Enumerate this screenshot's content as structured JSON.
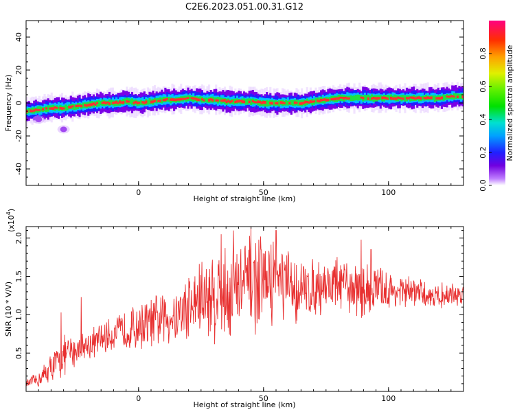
{
  "chart_data": [
    {
      "type": "heatmap",
      "title": "C2E6.2023.051.00.31.G12",
      "xlabel": "Height of straight line (km)",
      "ylabel": "Frequency (Hz)",
      "xlim": [
        -45,
        130
      ],
      "ylim": [
        -50,
        50
      ],
      "x_ticks": [
        "0",
        "50",
        "100"
      ],
      "x_tick_values": [
        0,
        50,
        100
      ],
      "y_ticks": [
        "40",
        "20",
        "0",
        "-20",
        "-40"
      ],
      "y_tick_values": [
        40,
        20,
        0,
        -20,
        -40
      ],
      "colorbar": {
        "label": "Normalized spectral amplitude",
        "ticks": [
          "0.0",
          "0.2",
          "0.4",
          "0.6",
          "0.8"
        ],
        "tick_values": [
          0.0,
          0.2,
          0.4,
          0.6,
          0.8
        ],
        "range": [
          0,
          1
        ]
      },
      "ridge": {
        "x": [
          -45,
          -40,
          -35,
          -30,
          -25,
          -20,
          -15,
          -10,
          -5,
          0,
          5,
          10,
          15,
          20,
          25,
          30,
          35,
          40,
          45,
          50,
          55,
          60,
          65,
          70,
          75,
          80,
          85,
          90,
          95,
          100,
          105,
          110,
          115,
          120,
          125,
          130
        ],
        "frequency": [
          -5,
          -4,
          -3,
          -3,
          -2,
          -1,
          0,
          0,
          1,
          0,
          1,
          2,
          2,
          3,
          2,
          2,
          1,
          1,
          1,
          0,
          0,
          0,
          0,
          1,
          2,
          3,
          3,
          3,
          3,
          3,
          3,
          3,
          3,
          3,
          4,
          4
        ]
      },
      "blobs": [
        {
          "x": -40,
          "frequency": -10
        },
        {
          "x": -30,
          "frequency": -16
        }
      ]
    },
    {
      "type": "line",
      "xlabel": "Height of straight line (km)",
      "ylabel": "SNR (10 * V/V)",
      "multiplier": "(x10",
      "multiplier_exp": "4",
      "multiplier_close": ")",
      "xlim": [
        -45,
        130
      ],
      "ylim": [
        0,
        2.15
      ],
      "x_ticks": [
        "0",
        "50",
        "100"
      ],
      "x_tick_values": [
        0,
        50,
        100
      ],
      "y_ticks": [
        "0.5",
        "1.0",
        "1.5",
        "2.0"
      ],
      "y_tick_values": [
        0.5,
        1.0,
        1.5,
        2.0
      ],
      "color": "#e83030",
      "envelope": {
        "x": [
          -45,
          -40,
          -35,
          -30,
          -25,
          -20,
          -15,
          -10,
          -5,
          0,
          5,
          10,
          15,
          20,
          25,
          30,
          35,
          40,
          45,
          50,
          55,
          60,
          65,
          70,
          75,
          80,
          85,
          90,
          95,
          100,
          105,
          110,
          115,
          120,
          125,
          130
        ],
        "mean": [
          0.1,
          0.15,
          0.3,
          0.45,
          0.55,
          0.6,
          0.68,
          0.75,
          0.8,
          0.85,
          0.9,
          0.95,
          1.0,
          1.1,
          1.2,
          1.25,
          1.3,
          1.35,
          1.4,
          1.4,
          1.45,
          1.35,
          1.3,
          1.35,
          1.4,
          1.4,
          1.35,
          1.3,
          1.35,
          1.3,
          1.3,
          1.3,
          1.25,
          1.25,
          1.25,
          1.25
        ],
        "spread": [
          0.05,
          0.1,
          0.2,
          0.25,
          0.2,
          0.2,
          0.2,
          0.2,
          0.25,
          0.3,
          0.3,
          0.35,
          0.35,
          0.45,
          0.55,
          0.6,
          0.6,
          0.6,
          0.6,
          0.55,
          0.55,
          0.45,
          0.4,
          0.35,
          0.35,
          0.35,
          0.3,
          0.35,
          0.3,
          0.25,
          0.2,
          0.2,
          0.15,
          0.15,
          0.15,
          0.15
        ]
      },
      "peaks": [
        {
          "x": -31,
          "y": 1.03
        },
        {
          "x": -23,
          "y": 1.23
        },
        {
          "x": 33,
          "y": 2.05
        },
        {
          "x": 38,
          "y": 2.1
        },
        {
          "x": 45,
          "y": 2.15
        },
        {
          "x": 55,
          "y": 2.1
        },
        {
          "x": 89,
          "y": 1.98
        },
        {
          "x": 93,
          "y": 1.85
        }
      ]
    }
  ]
}
